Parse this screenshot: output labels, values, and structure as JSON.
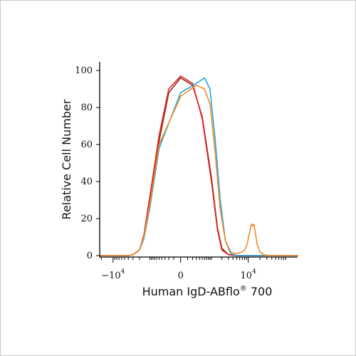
{
  "chart_data": {
    "type": "line",
    "xlabel": "Human IgD-ABflo",
    "xlabel_sup": "®",
    "xlabel_suffix": "700",
    "ylabel": "Relative Cell Number",
    "ylim": [
      0,
      100
    ],
    "yticks": [
      0,
      20,
      40,
      60,
      80,
      100
    ],
    "xscale": "biexponential",
    "xlim": [
      -22000,
      180000
    ],
    "xticks": [
      {
        "value": -10000,
        "base": "−10",
        "exp": "4"
      },
      {
        "value": 0,
        "base": "0",
        "exp": ""
      },
      {
        "value": 10000,
        "base": "10",
        "exp": "4"
      }
    ],
    "grid": false,
    "series": [
      {
        "color": "#8c2a1e",
        "x": [
          -22000,
          -4000,
          -3000,
          -2000,
          -1500,
          -1000,
          -500,
          -200,
          0,
          200,
          500,
          1000,
          1500,
          2000,
          3000,
          5000,
          180000
        ],
        "y": [
          0,
          0,
          0.5,
          3,
          10,
          30,
          62,
          88,
          96,
          92,
          75,
          42,
          15,
          4,
          0.5,
          0,
          0
        ]
      },
      {
        "color": "#e0251f",
        "x": [
          -22000,
          -4000,
          -3000,
          -2000,
          -1500,
          -1000,
          -500,
          -200,
          0,
          200,
          500,
          1000,
          1500,
          2000,
          3000,
          5000,
          180000
        ],
        "y": [
          0,
          0,
          0.5,
          3,
          11,
          32,
          65,
          90,
          97,
          93,
          74,
          40,
          14,
          3,
          0.5,
          0,
          0
        ]
      },
      {
        "color": "#1fa7e0",
        "x": [
          -22000,
          -4000,
          -3000,
          -2000,
          -1500,
          -1000,
          -500,
          0,
          300,
          600,
          900,
          1300,
          1800,
          2500,
          3500,
          5000,
          180000
        ],
        "y": [
          0,
          0,
          0.5,
          3,
          9,
          26,
          58,
          88,
          93,
          96,
          90,
          62,
          30,
          8,
          1,
          0,
          0
        ]
      },
      {
        "color": "#f08a24",
        "x": [
          -22000,
          -4000,
          -3000,
          -2000,
          -1500,
          -1000,
          -500,
          0,
          300,
          600,
          900,
          1300,
          1800,
          2500,
          3500,
          4500,
          6000,
          7000,
          8000,
          9000,
          10000,
          11000,
          12000,
          13000,
          14000,
          15000,
          17000,
          20000,
          25000,
          35000,
          180000
        ],
        "y": [
          0,
          0,
          0.5,
          3,
          10,
          28,
          60,
          86,
          92,
          90,
          82,
          55,
          25,
          8,
          2,
          1,
          1.5,
          2,
          3,
          5,
          9,
          13,
          17,
          16,
          17,
          13,
          6,
          2,
          0.5,
          0,
          0
        ]
      }
    ]
  }
}
